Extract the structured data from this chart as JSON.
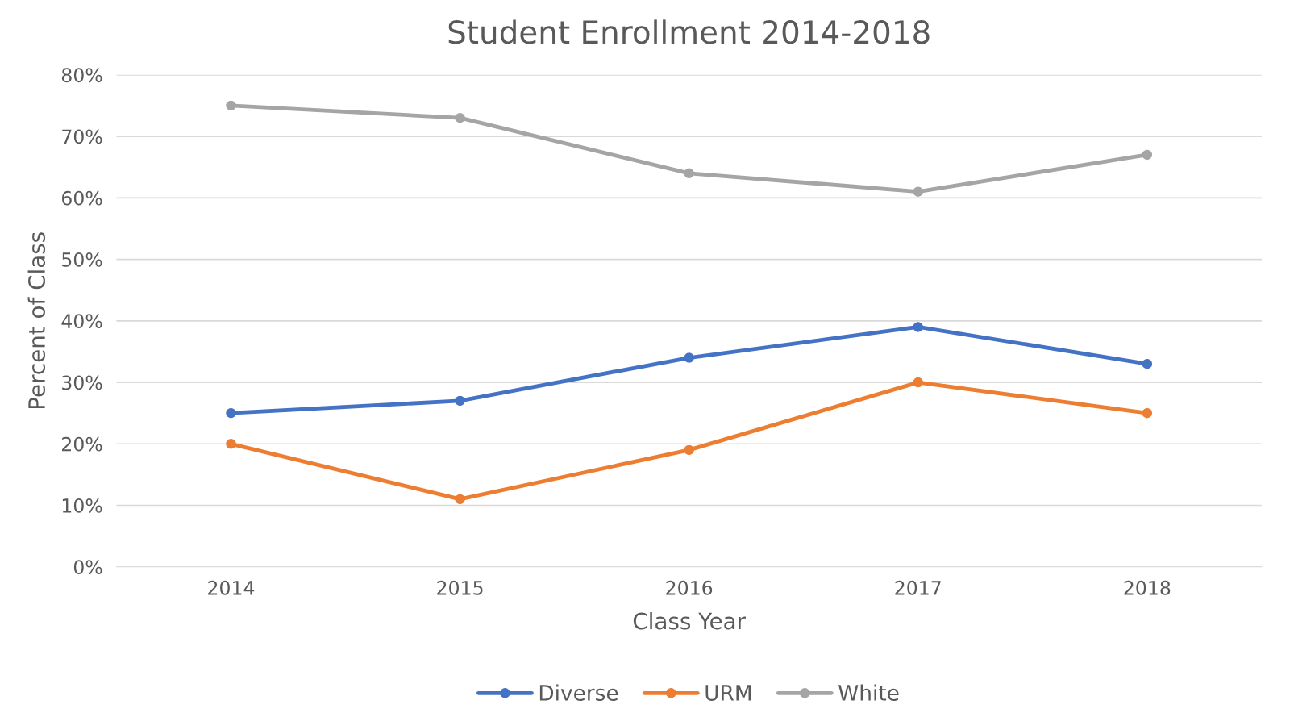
{
  "chart_data": {
    "type": "line",
    "title": "Student Enrollment 2014-2018",
    "xlabel": "Class Year",
    "ylabel": "Percent of Class",
    "categories": [
      "2014",
      "2015",
      "2016",
      "2017",
      "2018"
    ],
    "series": [
      {
        "name": "Diverse",
        "color": "#4472c4",
        "values": [
          25,
          27,
          34,
          39,
          33
        ]
      },
      {
        "name": "URM",
        "color": "#ed7d31",
        "values": [
          20,
          11,
          19,
          30,
          25
        ]
      },
      {
        "name": "White",
        "color": "#a5a5a5",
        "values": [
          75,
          73,
          64,
          61,
          67
        ]
      }
    ],
    "ylim": [
      0,
      80
    ],
    "yticks": [
      {
        "value": 0,
        "label": "0%"
      },
      {
        "value": 10,
        "label": "10%"
      },
      {
        "value": 20,
        "label": "20%"
      },
      {
        "value": 30,
        "label": "30%"
      },
      {
        "value": 40,
        "label": "40%"
      },
      {
        "value": 50,
        "label": "50%"
      },
      {
        "value": 60,
        "label": "60%"
      },
      {
        "value": 70,
        "label": "70%"
      },
      {
        "value": 80,
        "label": "80%"
      }
    ],
    "grid": "y",
    "legend": "bottom",
    "marker": "circle",
    "line_style": "solid"
  }
}
